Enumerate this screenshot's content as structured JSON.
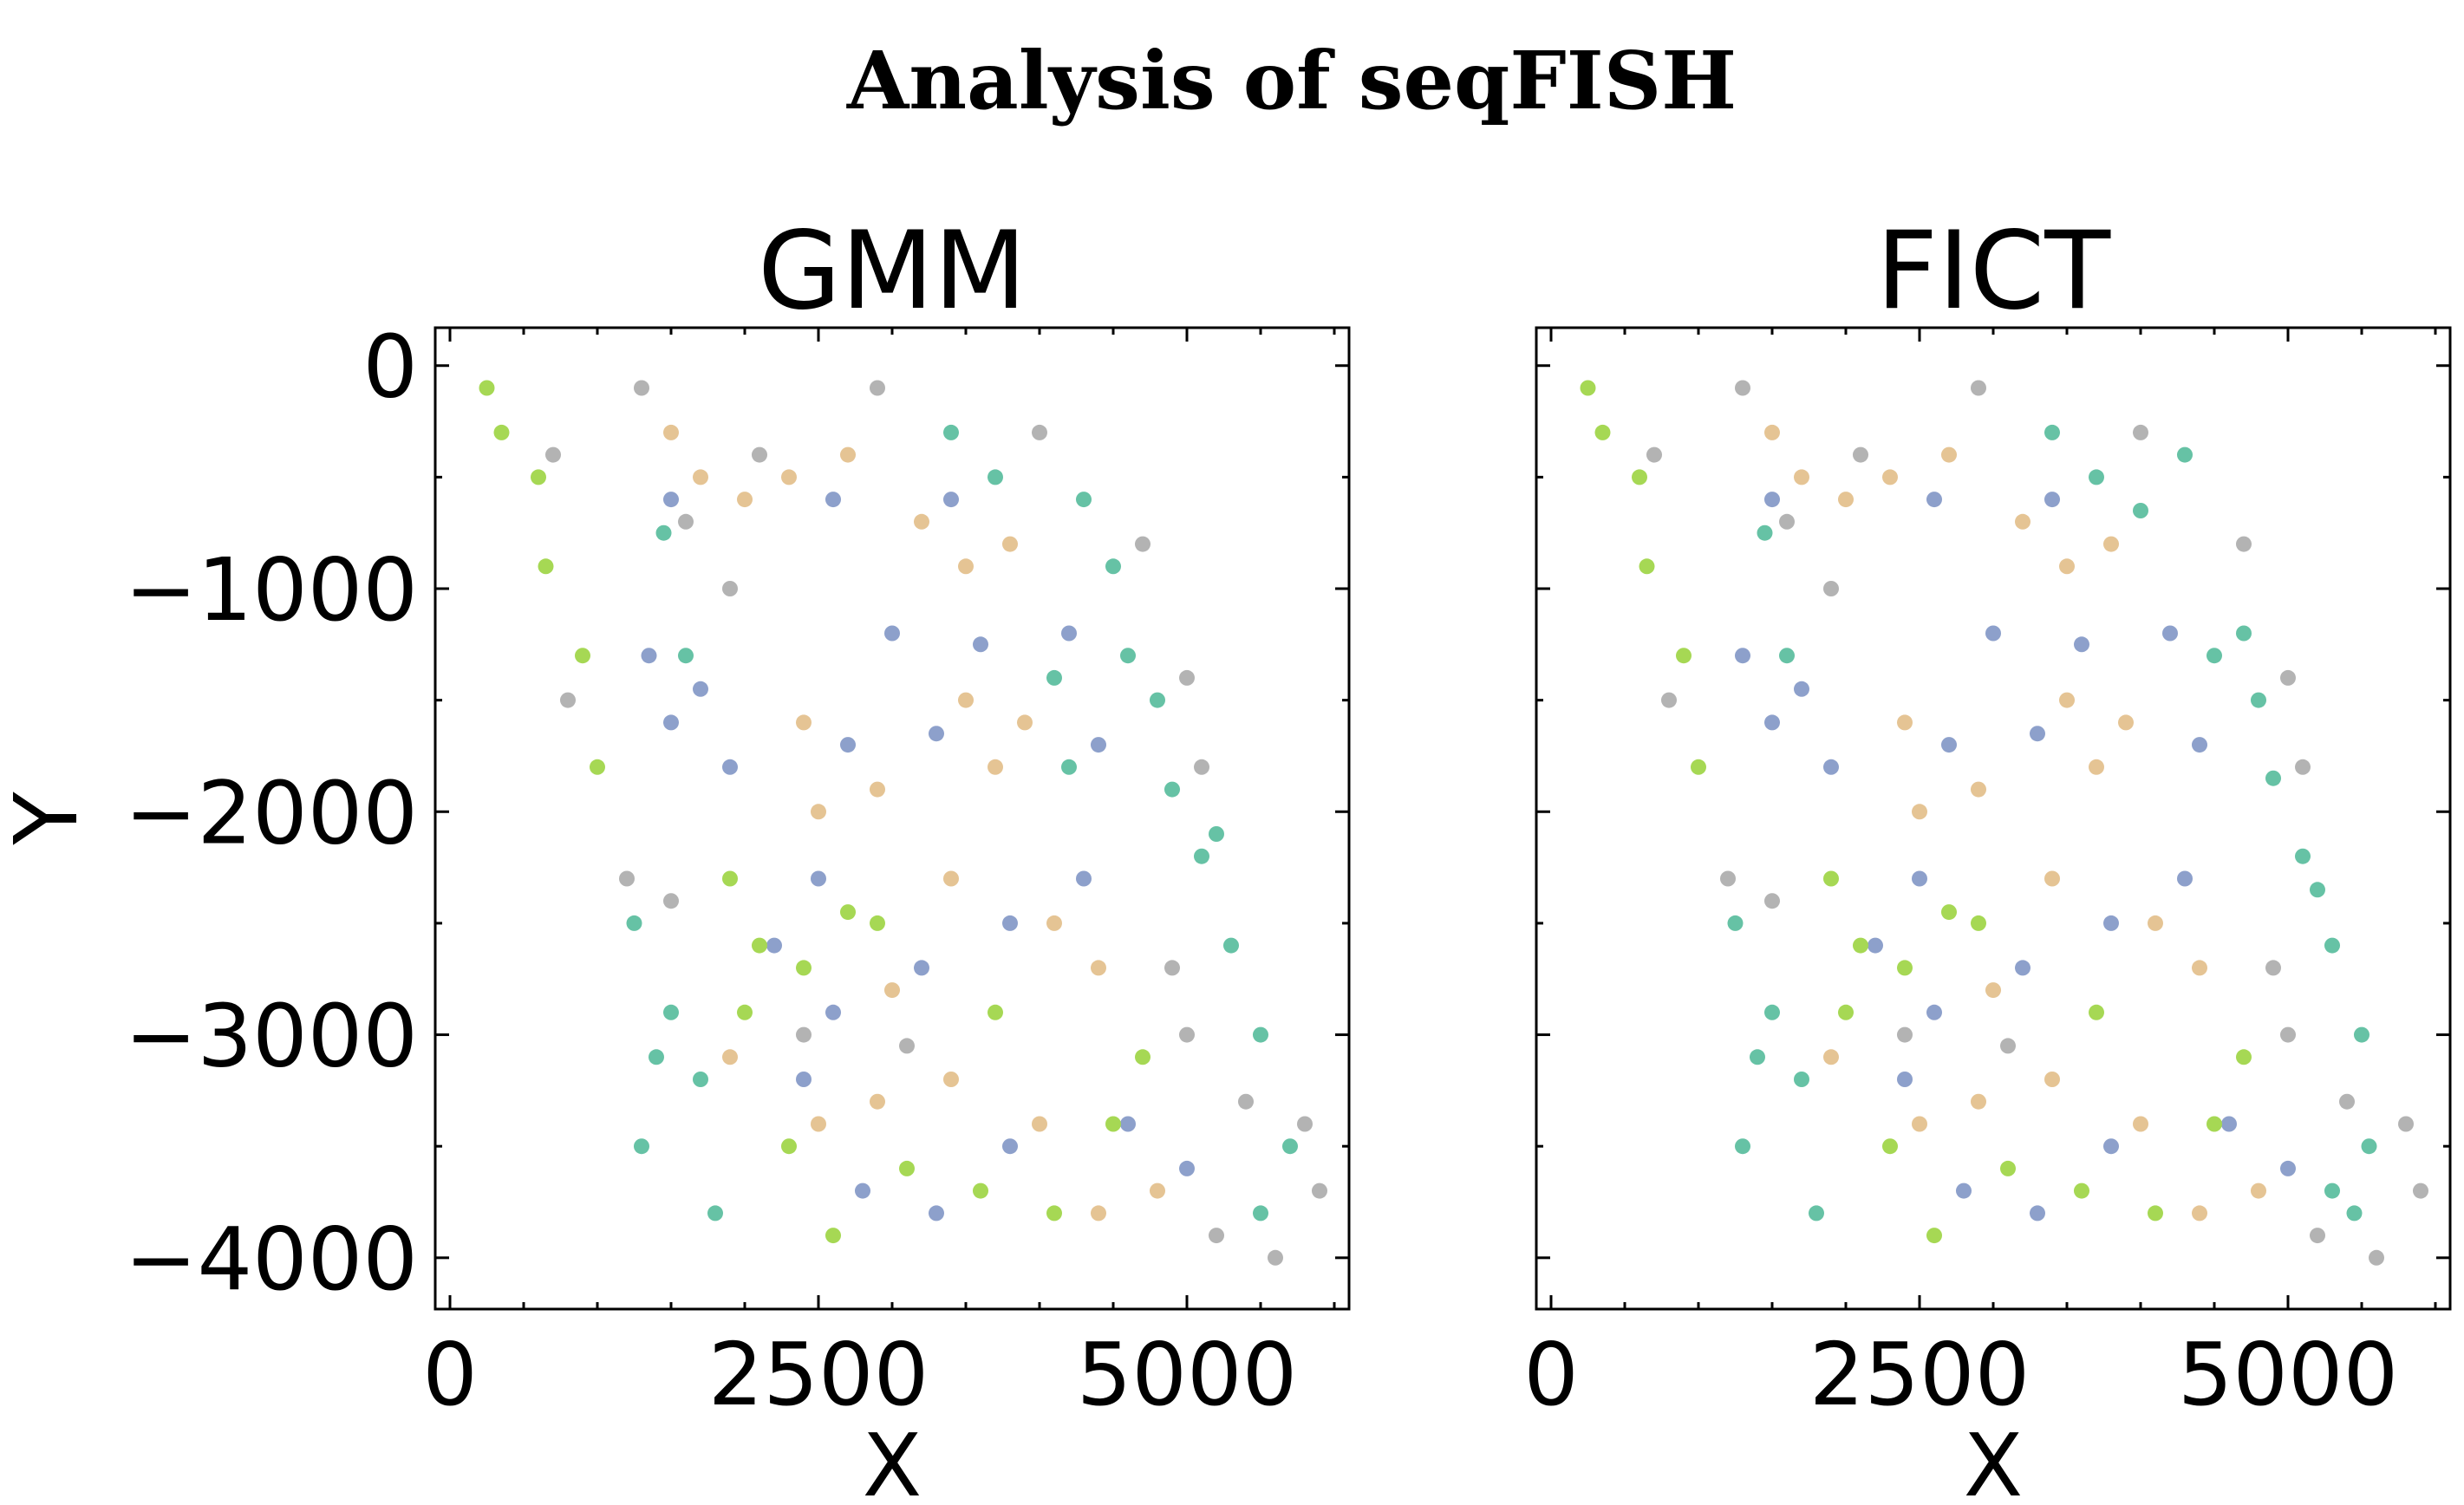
{
  "figure_title": "Analysis of seqFISH",
  "palette": {
    "cluster_0": "#66c2a5",
    "cluster_1": "#8da0cb",
    "cluster_2": "#a6d854",
    "cluster_3": "#e5c494",
    "cluster_4": "#b3b3b3"
  },
  "chart_data": [
    {
      "type": "scatter",
      "title": "GMM",
      "xlabel": "X",
      "ylabel": "Y",
      "xlim": [
        -100,
        6100
      ],
      "ylim": [
        -4230,
        170
      ],
      "xticks": [
        0,
        2500,
        5000
      ],
      "xtick_labels": [
        "0",
        "2500",
        "5000"
      ],
      "yticks": [
        0,
        -1000,
        -2000,
        -3000,
        -4000
      ],
      "ytick_labels": [
        "0",
        "−1000",
        "−2000",
        "−3000",
        "−4000"
      ],
      "show_ytick_labels": true,
      "grid": false,
      "legend": "none",
      "series": [
        {
          "values": [
            [
              1450,
              -750
            ],
            [
              1600,
              -1300
            ],
            [
              1250,
              -2500
            ],
            [
              1500,
              -2900
            ],
            [
              1700,
              -3200
            ],
            [
              1800,
              -3800
            ],
            [
              3400,
              -300
            ],
            [
              3700,
              -500
            ],
            [
              4300,
              -600
            ],
            [
              4500,
              -900
            ],
            [
              4600,
              -1300
            ],
            [
              4800,
              -1500
            ],
            [
              4900,
              -1900
            ],
            [
              5100,
              -2200
            ],
            [
              5300,
              -2600
            ],
            [
              5500,
              -3000
            ],
            [
              5700,
              -3500
            ],
            [
              5500,
              -3800
            ],
            [
              5200,
              -2100
            ],
            [
              4200,
              -1800
            ],
            [
              4100,
              -1400
            ],
            [
              1400,
              -3100
            ],
            [
              1300,
              -3500
            ]
          ]
        },
        {
          "values": [
            [
              1350,
              -1300
            ],
            [
              1500,
              -1600
            ],
            [
              1700,
              -1450
            ],
            [
              1900,
              -1800
            ],
            [
              2700,
              -1700
            ],
            [
              3000,
              -1200
            ],
            [
              3300,
              -1650
            ],
            [
              3600,
              -1250
            ],
            [
              4200,
              -1200
            ],
            [
              4400,
              -1700
            ],
            [
              2500,
              -2300
            ],
            [
              2200,
              -2600
            ],
            [
              2600,
              -2900
            ],
            [
              3200,
              -2700
            ],
            [
              3800,
              -2500
            ],
            [
              4300,
              -2300
            ],
            [
              2800,
              -3700
            ],
            [
              3300,
              -3800
            ],
            [
              3800,
              -3500
            ],
            [
              4600,
              -3400
            ],
            [
              5000,
              -3600
            ],
            [
              3400,
              -600
            ],
            [
              2600,
              -600
            ],
            [
              1500,
              -600
            ],
            [
              2400,
              -3200
            ]
          ]
        },
        {
          "values": [
            [
              250,
              -100
            ],
            [
              350,
              -300
            ],
            [
              600,
              -500
            ],
            [
              650,
              -900
            ],
            [
              900,
              -1300
            ],
            [
              1000,
              -1800
            ],
            [
              1900,
              -2300
            ],
            [
              2100,
              -2600
            ],
            [
              2400,
              -2700
            ],
            [
              2700,
              -2450
            ],
            [
              2000,
              -2900
            ],
            [
              2300,
              -3500
            ],
            [
              2600,
              -3900
            ],
            [
              3100,
              -3600
            ],
            [
              3600,
              -3700
            ],
            [
              4100,
              -3800
            ],
            [
              4500,
              -3400
            ],
            [
              4700,
              -3100
            ],
            [
              2900,
              -2500
            ],
            [
              3700,
              -2900
            ]
          ]
        },
        {
          "values": [
            [
              1500,
              -300
            ],
            [
              1700,
              -500
            ],
            [
              2000,
              -600
            ],
            [
              2300,
              -500
            ],
            [
              2700,
              -400
            ],
            [
              3200,
              -700
            ],
            [
              3500,
              -900
            ],
            [
              3800,
              -800
            ],
            [
              2400,
              -1600
            ],
            [
              2500,
              -2000
            ],
            [
              2900,
              -1900
            ],
            [
              3500,
              -1500
            ],
            [
              3700,
              -1800
            ],
            [
              3900,
              -1600
            ],
            [
              4100,
              -2500
            ],
            [
              4400,
              -2700
            ],
            [
              3400,
              -2300
            ],
            [
              3000,
              -2800
            ],
            [
              2500,
              -3400
            ],
            [
              2900,
              -3300
            ],
            [
              3400,
              -3200
            ],
            [
              4000,
              -3400
            ],
            [
              4400,
              -3800
            ],
            [
              4800,
              -3700
            ],
            [
              1900,
              -3100
            ]
          ]
        },
        {
          "values": [
            [
              1300,
              -100
            ],
            [
              1600,
              -700
            ],
            [
              700,
              -400
            ],
            [
              800,
              -1500
            ],
            [
              1900,
              -1000
            ],
            [
              2100,
              -400
            ],
            [
              2900,
              -100
            ],
            [
              4000,
              -300
            ],
            [
              4700,
              -800
            ],
            [
              5000,
              -1400
            ],
            [
              5100,
              -1800
            ],
            [
              1200,
              -2300
            ],
            [
              1500,
              -2400
            ],
            [
              4900,
              -2700
            ],
            [
              5000,
              -3000
            ],
            [
              5400,
              -3300
            ],
            [
              5800,
              -3400
            ],
            [
              5900,
              -3700
            ],
            [
              5600,
              -4000
            ],
            [
              5200,
              -3900
            ],
            [
              2400,
              -3000
            ],
            [
              3100,
              -3050
            ]
          ]
        }
      ]
    },
    {
      "type": "scatter",
      "title": "FICT",
      "xlabel": "X",
      "ylabel": "",
      "xlim": [
        -100,
        6100
      ],
      "ylim": [
        -4230,
        170
      ],
      "xticks": [
        0,
        2500,
        5000
      ],
      "xtick_labels": [
        "0",
        "2500",
        "5000"
      ],
      "yticks": [
        0,
        -1000,
        -2000,
        -3000,
        -4000
      ],
      "ytick_labels": [],
      "show_ytick_labels": false,
      "grid": false,
      "legend": "none",
      "series": [
        {
          "values": [
            [
              1450,
              -750
            ],
            [
              1600,
              -1300
            ],
            [
              1250,
              -2500
            ],
            [
              1500,
              -2900
            ],
            [
              1700,
              -3200
            ],
            [
              1800,
              -3800
            ],
            [
              3400,
              -300
            ],
            [
              3700,
              -500
            ],
            [
              4000,
              -650
            ],
            [
              4300,
              -400
            ],
            [
              4500,
              -1300
            ],
            [
              4800,
              -1500
            ],
            [
              4900,
              -1850
            ],
            [
              5100,
              -2200
            ],
            [
              5200,
              -2350
            ],
            [
              5300,
              -2600
            ],
            [
              5500,
              -3000
            ],
            [
              5550,
              -3500
            ],
            [
              5450,
              -3800
            ],
            [
              5300,
              -3700
            ],
            [
              1400,
              -3100
            ],
            [
              1300,
              -3500
            ],
            [
              4700,
              -1200
            ]
          ]
        },
        {
          "values": [
            [
              1300,
              -1300
            ],
            [
              1500,
              -1600
            ],
            [
              1700,
              -1450
            ],
            [
              1900,
              -1800
            ],
            [
              2700,
              -1700
            ],
            [
              3000,
              -1200
            ],
            [
              3300,
              -1650
            ],
            [
              3600,
              -1250
            ],
            [
              4200,
              -1200
            ],
            [
              4400,
              -1700
            ],
            [
              2500,
              -2300
            ],
            [
              2200,
              -2600
            ],
            [
              2600,
              -2900
            ],
            [
              3200,
              -2700
            ],
            [
              3800,
              -2500
            ],
            [
              4300,
              -2300
            ],
            [
              2800,
              -3700
            ],
            [
              3300,
              -3800
            ],
            [
              3800,
              -3500
            ],
            [
              4600,
              -3400
            ],
            [
              5000,
              -3600
            ],
            [
              3400,
              -600
            ],
            [
              2600,
              -600
            ],
            [
              1500,
              -600
            ],
            [
              2400,
              -3200
            ]
          ]
        },
        {
          "values": [
            [
              250,
              -100
            ],
            [
              350,
              -300
            ],
            [
              600,
              -500
            ],
            [
              650,
              -900
            ],
            [
              900,
              -1300
            ],
            [
              1000,
              -1800
            ],
            [
              1900,
              -2300
            ],
            [
              2100,
              -2600
            ],
            [
              2400,
              -2700
            ],
            [
              2700,
              -2450
            ],
            [
              2000,
              -2900
            ],
            [
              2300,
              -3500
            ],
            [
              2600,
              -3900
            ],
            [
              3100,
              -3600
            ],
            [
              3600,
              -3700
            ],
            [
              4100,
              -3800
            ],
            [
              4500,
              -3400
            ],
            [
              4700,
              -3100
            ],
            [
              2900,
              -2500
            ],
            [
              3700,
              -2900
            ]
          ]
        },
        {
          "values": [
            [
              1500,
              -300
            ],
            [
              1700,
              -500
            ],
            [
              2000,
              -600
            ],
            [
              2300,
              -500
            ],
            [
              2700,
              -400
            ],
            [
              3200,
              -700
            ],
            [
              3500,
              -900
            ],
            [
              3800,
              -800
            ],
            [
              2400,
              -1600
            ],
            [
              2500,
              -2000
            ],
            [
              2900,
              -1900
            ],
            [
              3500,
              -1500
            ],
            [
              3700,
              -1800
            ],
            [
              3900,
              -1600
            ],
            [
              4100,
              -2500
            ],
            [
              4400,
              -2700
            ],
            [
              3400,
              -2300
            ],
            [
              3000,
              -2800
            ],
            [
              2500,
              -3400
            ],
            [
              2900,
              -3300
            ],
            [
              3400,
              -3200
            ],
            [
              4000,
              -3400
            ],
            [
              4400,
              -3800
            ],
            [
              4800,
              -3700
            ],
            [
              1900,
              -3100
            ]
          ]
        },
        {
          "values": [
            [
              1300,
              -100
            ],
            [
              1600,
              -700
            ],
            [
              700,
              -400
            ],
            [
              800,
              -1500
            ],
            [
              1900,
              -1000
            ],
            [
              2100,
              -400
            ],
            [
              2900,
              -100
            ],
            [
              4000,
              -300
            ],
            [
              4700,
              -800
            ],
            [
              5000,
              -1400
            ],
            [
              5100,
              -1800
            ],
            [
              1200,
              -2300
            ],
            [
              1500,
              -2400
            ],
            [
              4900,
              -2700
            ],
            [
              5000,
              -3000
            ],
            [
              5400,
              -3300
            ],
            [
              5800,
              -3400
            ],
            [
              5900,
              -3700
            ],
            [
              5600,
              -4000
            ],
            [
              5200,
              -3900
            ],
            [
              2400,
              -3000
            ],
            [
              3100,
              -3050
            ]
          ]
        }
      ]
    }
  ]
}
